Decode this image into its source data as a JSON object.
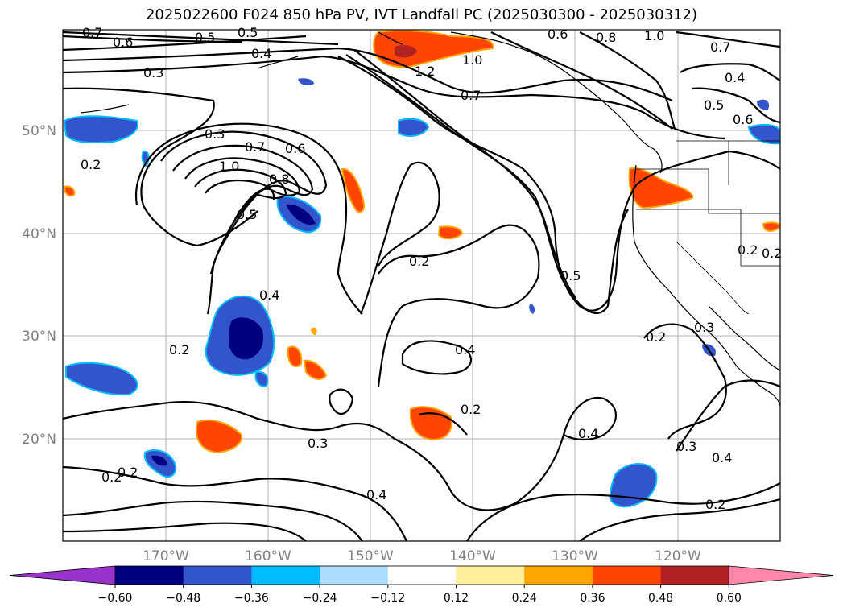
{
  "title": "2025022600 F024 850 hPa PV, IVT Landfall PC (2025030300 - 2025030312)",
  "lat_labels": [
    "50°N",
    "40°N",
    "30°N",
    "20°N"
  ],
  "lon_labels": [
    "170°W",
    "160°W",
    "150°W",
    "140°W",
    "130°W",
    "120°W"
  ],
  "contour_labels": [
    "0.7",
    "0.6",
    "0.5",
    "0.5",
    "0.4",
    "0.3",
    "0.6",
    "0.8",
    "1.0",
    "0.7",
    "0.4",
    "0.5",
    "0.6",
    "1.2",
    "1.0",
    "0.7",
    "0.3",
    "0.7",
    "0.6",
    "1.0",
    "0.8",
    "0.5",
    "0.2",
    "0.4",
    "0.2",
    "0.2",
    "0.4",
    "0.5",
    "0.2",
    "0.3",
    "0.2",
    "0.2",
    "0.3",
    "0.4",
    "0.2",
    "0.4",
    "0.3",
    "0.4",
    "0.2",
    "0.2",
    "0.2"
  ],
  "colorbar": {
    "colors": [
      "#9933cc",
      "#000080",
      "#3355cc",
      "#00bbff",
      "#aaddff",
      "#ffffff",
      "#ffee99",
      "#ffa500",
      "#ff4500",
      "#b22222",
      "#ff88aa"
    ],
    "tick_labels": [
      "−0.60",
      "−0.48",
      "−0.36",
      "−0.24",
      "−0.12",
      "0.12",
      "0.24",
      "0.36",
      "0.48",
      "0.60"
    ]
  },
  "shading_colors": {
    "neg_mid": "#3355cc",
    "neg_strong": "#000080",
    "neg_light": "#00bbff",
    "pos_light": "#ffee99",
    "pos_mid": "#ffa500",
    "pos_strong": "#ff4500",
    "pos_dark": "#b22222"
  }
}
